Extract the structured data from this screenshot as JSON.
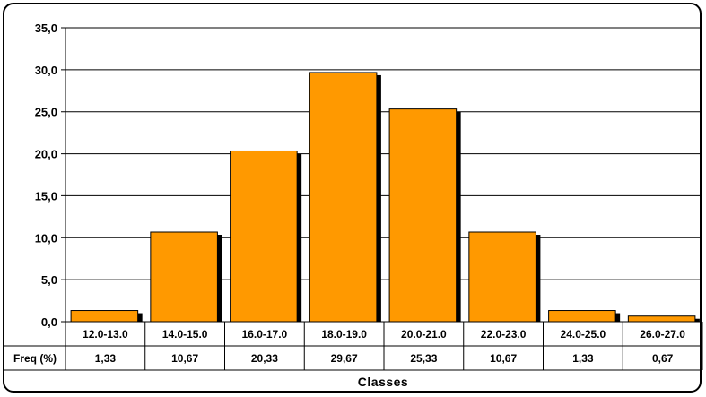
{
  "chart_data": {
    "type": "bar",
    "title": "",
    "xlabel": "Classes",
    "ylabel": "",
    "categories": [
      "12.0-13.0",
      "14.0-15.0",
      "16.0-17.0",
      "18.0-19.0",
      "20.0-21.0",
      "22.0-23.0",
      "24.0-25.0",
      "26.0-27.0"
    ],
    "series": [
      {
        "name": "Freq (%)",
        "values": [
          1.33,
          10.67,
          20.33,
          29.67,
          25.33,
          10.67,
          1.33,
          0.67
        ]
      }
    ],
    "table_row_label": "Freq (%)",
    "table_values": [
      "1,33",
      "10,67",
      "20,33",
      "29,67",
      "25,33",
      "10,67",
      "1,33",
      "0,67"
    ],
    "y_ticks": [
      "0,0",
      "5,0",
      "10,0",
      "15,0",
      "20,0",
      "25,0",
      "30,0",
      "35,0"
    ],
    "ylim": [
      0,
      35
    ],
    "grid": true,
    "legend": "none",
    "colors": {
      "bar": "#FF9900",
      "shadow": "#000000",
      "grid": "#000000"
    }
  }
}
